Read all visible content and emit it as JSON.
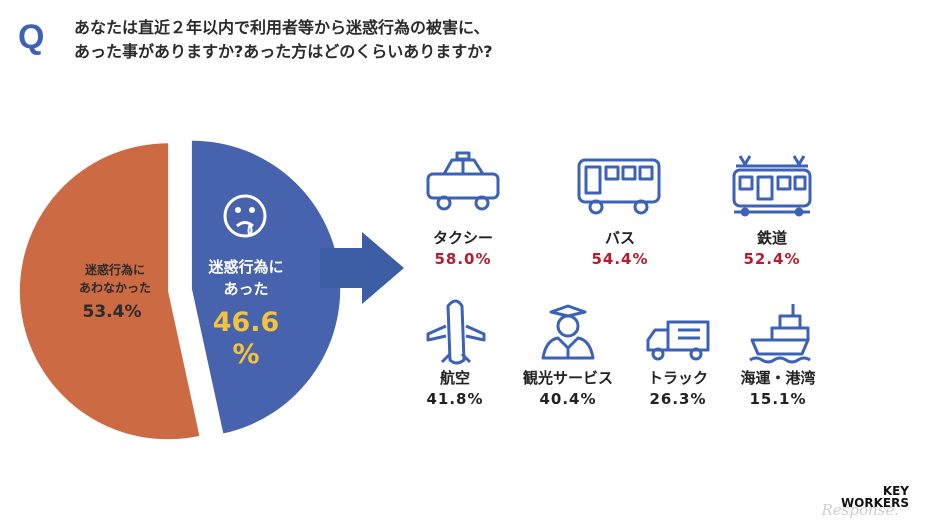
{
  "question": {
    "mark": "Q",
    "text": "あなたは直近２年以内で利用者等から迷惑行為の被害に、\nあった事がありますか?あった方はどのくらいありますか?"
  },
  "chart_data": [
    {
      "type": "pie",
      "slices": [
        {
          "label": "迷惑行為に\nあった",
          "value": 46.6,
          "value_text": "46.6\n%",
          "color": "#4763ad",
          "label_color": "#ffffff",
          "value_color": "#f4c33b"
        },
        {
          "label": "迷惑行為に\nあわなかった",
          "value": 53.4,
          "value_text": "53.4%",
          "color": "#cc6a43",
          "label_color": "#2b2b2b",
          "value_color": "#2b2b2b"
        }
      ]
    },
    {
      "type": "table",
      "categories": [
        "タクシー",
        "バス",
        "鉄道",
        "航空",
        "観光サービス",
        "トラック",
        "海運・港湾"
      ],
      "values": [
        58.0,
        54.4,
        52.4,
        41.8,
        40.4,
        26.3,
        15.1
      ],
      "value_texts": [
        "58.0%",
        "54.4%",
        "52.4%",
        "41.8%",
        "40.4%",
        "26.3%",
        "15.1%"
      ],
      "icons": [
        "taxi-icon",
        "bus-icon",
        "train-icon",
        "airplane-icon",
        "tour-guide-icon",
        "truck-icon",
        "ship-icon"
      ],
      "highlight_color": "#b51d2e"
    }
  ],
  "colors": {
    "icon": "#3c62b8",
    "arrow": "#3c5ea4",
    "q_mark": "#3c62b8"
  },
  "logo": {
    "line1": "KEY",
    "line2": "WORKERS"
  },
  "watermark": "Response."
}
